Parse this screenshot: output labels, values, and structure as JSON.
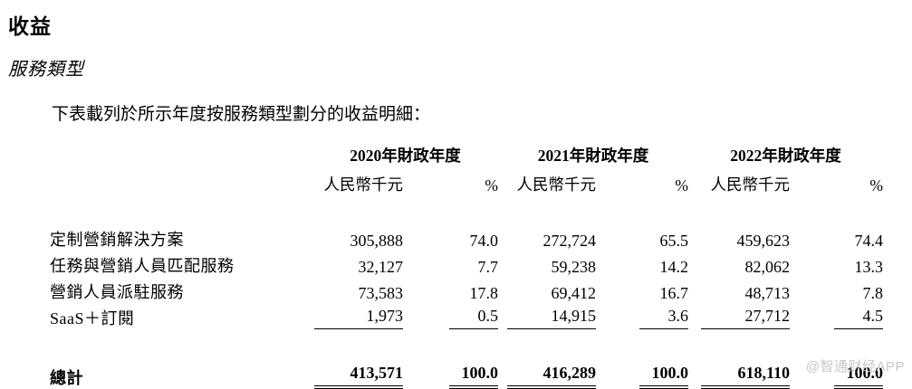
{
  "page": {
    "title": "收益",
    "subtitle": "服務類型",
    "intro": "下表載列於所示年度按服務類型劃分的收益明細：",
    "watermark": "@智通财经APP"
  },
  "table": {
    "year_headers": [
      "2020年財政年度",
      "2021年財政年度",
      "2022年財政年度"
    ],
    "sub_headers": {
      "amount": "人民幣千元",
      "percent": "%"
    },
    "rows": [
      {
        "label": "定制營銷解決方案",
        "values": [
          "305,888",
          "74.0",
          "272,724",
          "65.5",
          "459,623",
          "74.4"
        ]
      },
      {
        "label": "任務與營銷人員匹配服務",
        "values": [
          "32,127",
          "7.7",
          "59,238",
          "14.2",
          "82,062",
          "13.3"
        ]
      },
      {
        "label": "營銷人員派駐服務",
        "values": [
          "73,583",
          "17.8",
          "69,412",
          "16.7",
          "48,713",
          "7.8"
        ]
      },
      {
        "label": "SaaS＋訂閱",
        "values": [
          "1,973",
          "0.5",
          "14,915",
          "3.6",
          "27,712",
          "4.5"
        ]
      }
    ],
    "total_row": {
      "label": "總計",
      "values": [
        "413,571",
        "100.0",
        "416,289",
        "100.0",
        "618,110",
        "100.0"
      ]
    }
  }
}
